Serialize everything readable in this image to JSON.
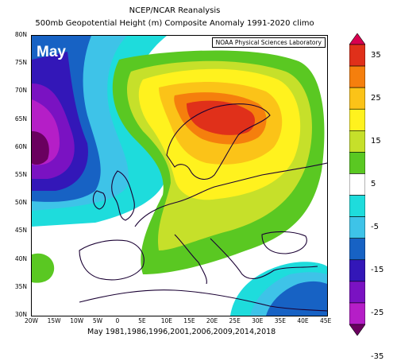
{
  "title": {
    "line1": "NCEP/NCAR Reanalysis",
    "line2": "500mb Geopotential Height (m) Composite Anomaly 1991-2020 climo"
  },
  "map": {
    "month": "May",
    "source": "NOAA Physical Sciences Laboratory",
    "years": "May 1981,1986,1996,2001,2006,2009,2014,2018",
    "lat_labels": [
      "80N",
      "75N",
      "70N",
      "65N",
      "60N",
      "55N",
      "50N",
      "45N",
      "40N",
      "35N",
      "30N"
    ],
    "lon_labels": [
      "20W",
      "15W",
      "10W",
      "5W",
      "0",
      "5E",
      "10E",
      "15E",
      "20E",
      "25E",
      "30E",
      "35E",
      "40E",
      "45E"
    ],
    "extent": {
      "lon_min": -20,
      "lon_max": 45,
      "lat_min": 30,
      "lat_max": 80
    }
  },
  "colorbar": {
    "labels": [
      "35",
      "25",
      "15",
      "5",
      "-5",
      "-15",
      "-25",
      "-35"
    ],
    "colors": [
      "#d8004f",
      "#e0301a",
      "#f57f0d",
      "#fbc318",
      "#fff21e",
      "#c6e02a",
      "#5ac822",
      "#ffffff",
      "#1edcdc",
      "#3ec3e8",
      "#1762c4",
      "#3317b8",
      "#7a12c2",
      "#b51ec7",
      "#6a005f"
    ],
    "colors_desc": "top to bottom; anomaly bins"
  }
}
